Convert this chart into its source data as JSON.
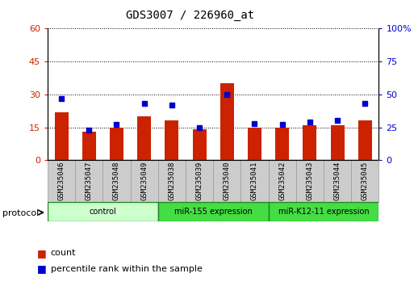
{
  "title": "GDS3007 / 226960_at",
  "samples": [
    "GSM235046",
    "GSM235047",
    "GSM235048",
    "GSM235049",
    "GSM235038",
    "GSM235039",
    "GSM235040",
    "GSM235041",
    "GSM235042",
    "GSM235043",
    "GSM235044",
    "GSM235045"
  ],
  "counts": [
    22,
    13,
    15,
    20,
    18,
    14,
    35,
    15,
    15,
    16,
    16,
    18
  ],
  "percentile_ranks": [
    47,
    23,
    27,
    43,
    42,
    25,
    50,
    28,
    27,
    29,
    30,
    43
  ],
  "groups": [
    {
      "label": "control",
      "start": 0,
      "end": 4,
      "color": "#ccffcc"
    },
    {
      "label": "miR-155 expression",
      "start": 4,
      "end": 8,
      "color": "#44dd44"
    },
    {
      "label": "miR-K12-11 expression",
      "start": 8,
      "end": 12,
      "color": "#44dd44"
    }
  ],
  "ylim_left": [
    0,
    60
  ],
  "ylim_right": [
    0,
    100
  ],
  "yticks_left": [
    0,
    15,
    30,
    45,
    60
  ],
  "yticks_right": [
    0,
    25,
    50,
    75,
    100
  ],
  "bar_color": "#cc2200",
  "dot_color": "#0000cc",
  "bg_color": "#ffffff",
  "tick_label_color_left": "#cc2200",
  "tick_label_color_right": "#0000cc",
  "xlabel_color": "#333333",
  "protocol_label": "protocol",
  "legend_items": [
    {
      "label": "count",
      "color": "#cc2200"
    },
    {
      "label": "percentile rank within the sample",
      "color": "#0000cc"
    }
  ]
}
